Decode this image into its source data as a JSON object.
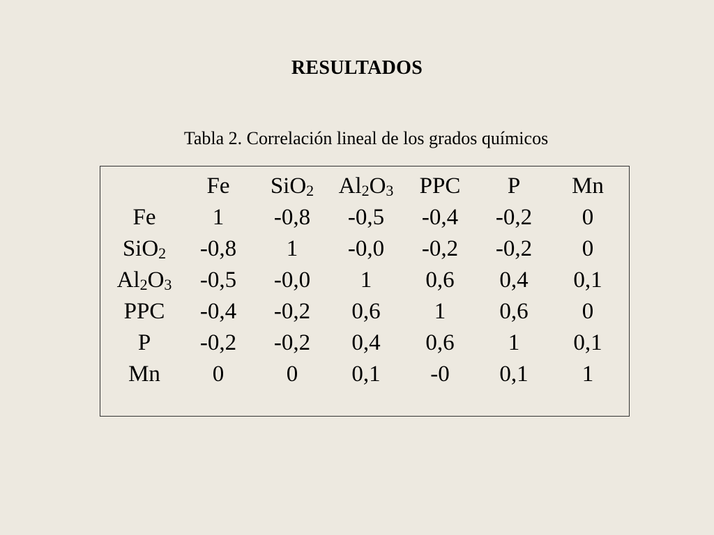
{
  "slide": {
    "title": "RESULTADOS",
    "caption": "Tabla 2. Correlación lineal de los grados químicos"
  },
  "table": {
    "labels": [
      {
        "base": "Fe"
      },
      {
        "base": "SiO",
        "sub": "2"
      },
      {
        "base": "Al",
        "sub": "2",
        "base2": "O",
        "sub2": "3"
      },
      {
        "base": "PPC"
      },
      {
        "base": "P"
      },
      {
        "base": "Mn"
      }
    ],
    "rows": [
      [
        "1",
        "-0,8",
        "-0,5",
        "-0,4",
        "-0,2",
        "0"
      ],
      [
        "-0,8",
        "1",
        "-0,0",
        "-0,2",
        "-0,2",
        "0"
      ],
      [
        "-0,5",
        "-0,0",
        "1",
        "0,6",
        "0,4",
        "0,1"
      ],
      [
        "-0,4",
        "-0,2",
        "0,6",
        "1",
        "0,6",
        "0"
      ],
      [
        "-0,2",
        "-0,2",
        "0,4",
        "0,6",
        "1",
        "0,1"
      ],
      [
        "0",
        "0",
        "0,1",
        "-0",
        "0,1",
        "1"
      ]
    ]
  }
}
